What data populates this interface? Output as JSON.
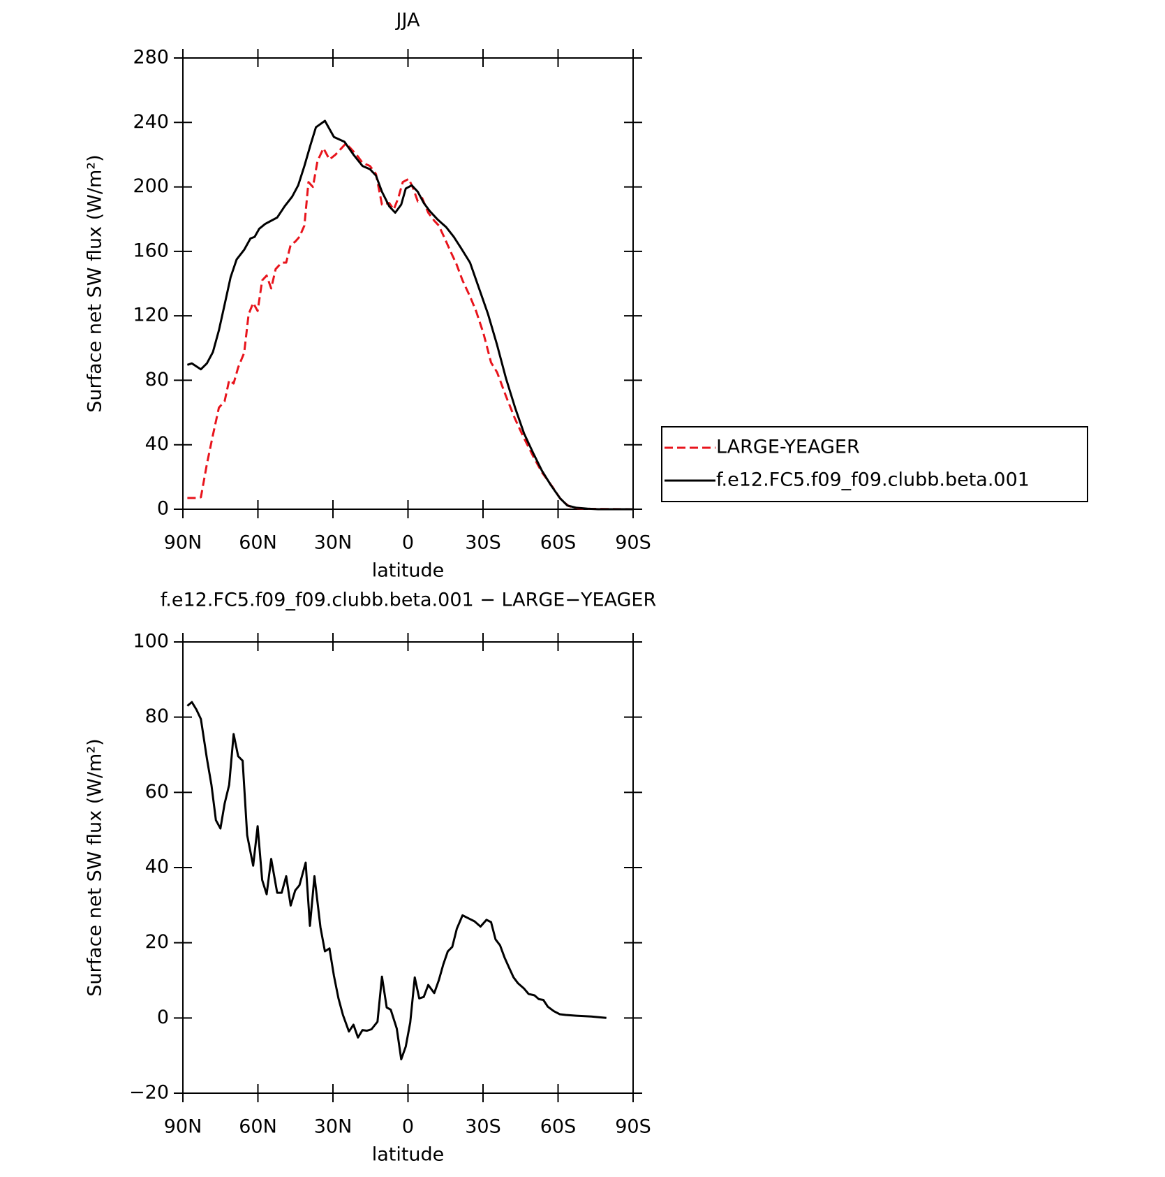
{
  "chart_data": [
    {
      "type": "line",
      "title": "JJA",
      "xlabel": "latitude",
      "ylabel": "Surface net SW flux (W/m²)",
      "xlim": [
        90,
        -90
      ],
      "xticks": [
        {
          "value": 90,
          "label": "90N"
        },
        {
          "value": 60,
          "label": "60N"
        },
        {
          "value": 30,
          "label": "30N"
        },
        0,
        {
          "value": -30,
          "label": "30S"
        },
        {
          "value": -60,
          "label": "60S"
        },
        {
          "value": -90,
          "label": "90S"
        }
      ],
      "ylim": [
        0,
        280
      ],
      "yticks": [
        0,
        40,
        80,
        120,
        160,
        200,
        240,
        280
      ],
      "legend": "outside-right",
      "series": [
        {
          "name": "LARGE-YEAGER",
          "color": "#e8141c",
          "dashed": true,
          "x": [
            88.2,
            84.6,
            82.8,
            80.4,
            78,
            75.6,
            73.3,
            71.5,
            69.7,
            67.9,
            65.5,
            63.7,
            61.9,
            60.1,
            58.3,
            56.5,
            54.7,
            52.9,
            50.5,
            48.7,
            46.9,
            45.1,
            43.4,
            41.4,
            39.8,
            38,
            36.2,
            33.8,
            31.4,
            29,
            26.6,
            24.8,
            23,
            20.6,
            18.2,
            15.2,
            12.8,
            10.4,
            7.5,
            5.7,
            3.9,
            2.1,
            -0.3,
            -2.1,
            -3.9,
            -5.7,
            -8.1,
            -10.5,
            -12.3,
            -14.7,
            -17,
            -19.4,
            -21.8,
            -24.8,
            -27.2,
            -30.2,
            -33.2,
            -35.6,
            -39.2,
            -42.8,
            -46.4,
            -50,
            -53.5,
            -57.7,
            -61.3,
            -64.3,
            -67.9,
            -73.3,
            -89.7
          ],
          "values": [
            7,
            7,
            7.4,
            28,
            46,
            63,
            67,
            80,
            78,
            88,
            97,
            121,
            128,
            123,
            142,
            145,
            137,
            149,
            153,
            153,
            164,
            166,
            169,
            176,
            203,
            200,
            216,
            224,
            217,
            220,
            224,
            227,
            224,
            220,
            215,
            213,
            208,
            189,
            190,
            186,
            193,
            203,
            205,
            199,
            191,
            193,
            184,
            179,
            176,
            168,
            160,
            152,
            142,
            132,
            123,
            109,
            91,
            85,
            70,
            56,
            44,
            33,
            23,
            14,
            5.6,
            1.9,
            0.5,
            0.2,
            0
          ]
        },
        {
          "name": "f.e12.FC5.f09_f09.clubb.beta.001",
          "color": "#000000",
          "dashed": false,
          "x": [
            88.2,
            86.4,
            82.8,
            80.4,
            78,
            75.6,
            73.3,
            70.9,
            68.5,
            65.5,
            63,
            61.3,
            59.5,
            57.1,
            54.7,
            52.3,
            49.3,
            46.3,
            43.9,
            41.4,
            39,
            36.8,
            33.2,
            29.6,
            25.4,
            21.8,
            18.2,
            15.2,
            12.8,
            10.4,
            7.5,
            5.1,
            2.7,
            0.9,
            -1.5,
            -3.9,
            -6.3,
            -8.7,
            -11.7,
            -15.3,
            -18.3,
            -21.2,
            -24.8,
            -28.4,
            -32,
            -35.6,
            -39.2,
            -42.8,
            -46.4,
            -50,
            -53.5,
            -57.1,
            -60.7,
            -63.7,
            -67.3,
            -71.8,
            -76,
            -89.7
          ],
          "values": [
            89.6,
            90.5,
            86.8,
            90.5,
            97.5,
            111,
            127,
            144,
            155,
            161,
            168,
            169,
            174,
            177,
            179,
            181,
            188,
            194,
            201,
            213,
            226,
            237,
            241,
            231,
            228,
            220,
            213,
            211,
            207,
            197,
            188,
            184,
            189,
            199,
            201,
            197,
            190,
            185,
            180,
            175,
            169,
            162,
            153,
            137,
            121,
            102,
            81,
            63,
            47,
            35,
            24,
            15,
            7,
            2.3,
            0.9,
            0.3,
            0,
            0
          ]
        }
      ]
    },
    {
      "type": "line",
      "title": "f.e12.FC5.f09_f09.clubb.beta.001 − LARGE−YEAGER",
      "xlabel": "latitude",
      "ylabel": "Surface net SW flux (W/m²)",
      "xlim": [
        90,
        -90
      ],
      "xticks": [
        {
          "value": 90,
          "label": "90N"
        },
        {
          "value": 60,
          "label": "60N"
        },
        {
          "value": 30,
          "label": "30N"
        },
        0,
        {
          "value": -30,
          "label": "30S"
        },
        {
          "value": -60,
          "label": "60S"
        },
        {
          "value": -90,
          "label": "90S"
        }
      ],
      "ylim": [
        -20,
        100
      ],
      "yticks": [
        {
          "value": -20,
          "label": "−20"
        },
        0,
        20,
        40,
        60,
        80,
        100
      ],
      "series": [
        {
          "color": "#000000",
          "dashed": false,
          "x": [
            88.2,
            86.4,
            84.6,
            82.8,
            80.4,
            78.6,
            76.8,
            75,
            73.3,
            71.5,
            69.7,
            67.9,
            66.1,
            64.3,
            61.9,
            60.1,
            58.3,
            56.5,
            54.7,
            52.3,
            50.5,
            48.7,
            46.9,
            45.1,
            43.4,
            40.9,
            39.2,
            37.4,
            35,
            33.2,
            31.4,
            29.6,
            27.8,
            26,
            23.6,
            21.8,
            20,
            18.2,
            16.4,
            14.6,
            12.2,
            10.4,
            8.5,
            6.9,
            4.5,
            2.7,
            0.9,
            -0.9,
            -2.7,
            -4.5,
            -6.3,
            -8.1,
            -10.5,
            -12.3,
            -14.1,
            -15.9,
            -17.7,
            -19.5,
            -21.8,
            -24.2,
            -26.6,
            -29,
            -31.4,
            -33.2,
            -35,
            -36.8,
            -38.6,
            -40.4,
            -42.2,
            -44,
            -46.4,
            -48.2,
            -50.6,
            -52.3,
            -54.1,
            -55.9,
            -58.3,
            -60.7,
            -63.1,
            -67.3,
            -73.3,
            -76.3,
            -79.3
          ],
          "values": [
            83,
            84,
            82,
            79.5,
            69,
            62,
            52.6,
            50.4,
            57,
            62,
            75.5,
            69.6,
            68.4,
            48.6,
            40.5,
            51,
            36.7,
            32.9,
            42.3,
            33.3,
            33.3,
            37.7,
            29.9,
            33.9,
            35.3,
            41.3,
            24.5,
            37.7,
            24.1,
            17.7,
            18.5,
            11.2,
            5.2,
            0.8,
            -3.6,
            -1.8,
            -5.2,
            -3.2,
            -3.4,
            -3,
            -1,
            11,
            2.8,
            2.2,
            -2.8,
            -11,
            -7.6,
            -1.2,
            10.8,
            5.2,
            5.6,
            8.8,
            6.6,
            10,
            14.2,
            17.7,
            18.9,
            23.7,
            27.3,
            26.5,
            25.7,
            24.3,
            26.1,
            25.5,
            20.9,
            19.3,
            16.1,
            13.4,
            10.8,
            9.2,
            7.8,
            6.4,
            6,
            5,
            4.8,
            3,
            1.8,
            1,
            0.8,
            0.6,
            0.4,
            0.2,
            0
          ]
        }
      ]
    }
  ]
}
